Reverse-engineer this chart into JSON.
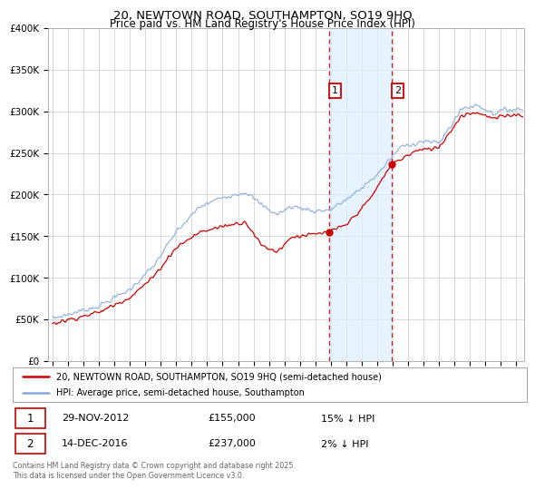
{
  "title": "20, NEWTOWN ROAD, SOUTHAMPTON, SO19 9HQ",
  "subtitle": "Price paid vs. HM Land Registry's House Price Index (HPI)",
  "legend_line1": "20, NEWTOWN ROAD, SOUTHAMPTON, SO19 9HQ (semi-detached house)",
  "legend_line2": "HPI: Average price, semi-detached house, Southampton",
  "transaction1_date": "29-NOV-2012",
  "transaction1_price": "£155,000",
  "transaction1_hpi": "15% ↓ HPI",
  "transaction1_year": 2012.92,
  "transaction1_value": 155000,
  "transaction2_date": "14-DEC-2016",
  "transaction2_price": "£237,000",
  "transaction2_hpi": "2% ↓ HPI",
  "transaction2_year": 2016.96,
  "transaction2_value": 237000,
  "price_color": "#cc0000",
  "hpi_color": "#88aadd",
  "vline_color": "#cc0000",
  "highlight_fill": "#ddeeff",
  "footer": "Contains HM Land Registry data © Crown copyright and database right 2025.\nThis data is licensed under the Open Government Licence v3.0.",
  "ylim": [
    0,
    400000
  ],
  "ytick_values": [
    0,
    50000,
    100000,
    150000,
    200000,
    250000,
    300000,
    350000,
    400000
  ],
  "ytick_labels": [
    "£0",
    "£50K",
    "£100K",
    "£150K",
    "£200K",
    "£250K",
    "£300K",
    "£350K",
    "£400K"
  ],
  "xlim_start": 1994.7,
  "xlim_end": 2025.5
}
